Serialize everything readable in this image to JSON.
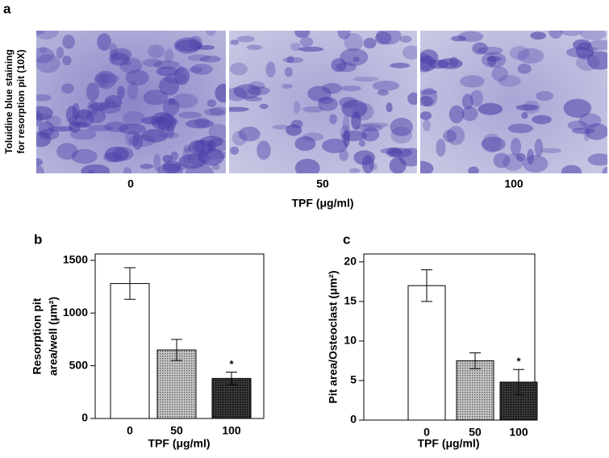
{
  "panel_a": {
    "label": "a",
    "ylabel": [
      "Toluidine blue  staining",
      "for resorption pit (10X)"
    ],
    "categories": [
      "0",
      "50",
      "100"
    ],
    "xlabel": "TPF (μg/ml)"
  },
  "chart_data": [
    {
      "type": "bar",
      "label": "b",
      "ylabel": [
        "Resorption pit",
        "area/well (μm²)"
      ],
      "xlabel": "TPF (μg/ml)",
      "categories": [
        "0",
        "50",
        "100"
      ],
      "values": [
        1280,
        650,
        380
      ],
      "errors": [
        150,
        100,
        60
      ],
      "significance": [
        null,
        null,
        "*"
      ],
      "colors": [
        "#ffffff",
        "#c8c8c8",
        "#3a3a3a"
      ],
      "ylim": [
        0,
        1560
      ],
      "yticks": [
        0,
        500,
        1000,
        1500
      ]
    },
    {
      "type": "bar",
      "label": "c",
      "ylabel": [
        "Pit area/Osteoclast (μm²)"
      ],
      "xlabel": "TPF (μg/ml)",
      "categories": [
        "0",
        "50",
        "100"
      ],
      "values": [
        17,
        7.5,
        4.8
      ],
      "errors": [
        2,
        1,
        1.6
      ],
      "significance": [
        null,
        null,
        "*"
      ],
      "colors": [
        "#ffffff",
        "#c8c8c8",
        "#3a3a3a"
      ],
      "ylim": [
        0,
        21
      ],
      "yticks": [
        0,
        5,
        10,
        15,
        20
      ]
    }
  ]
}
